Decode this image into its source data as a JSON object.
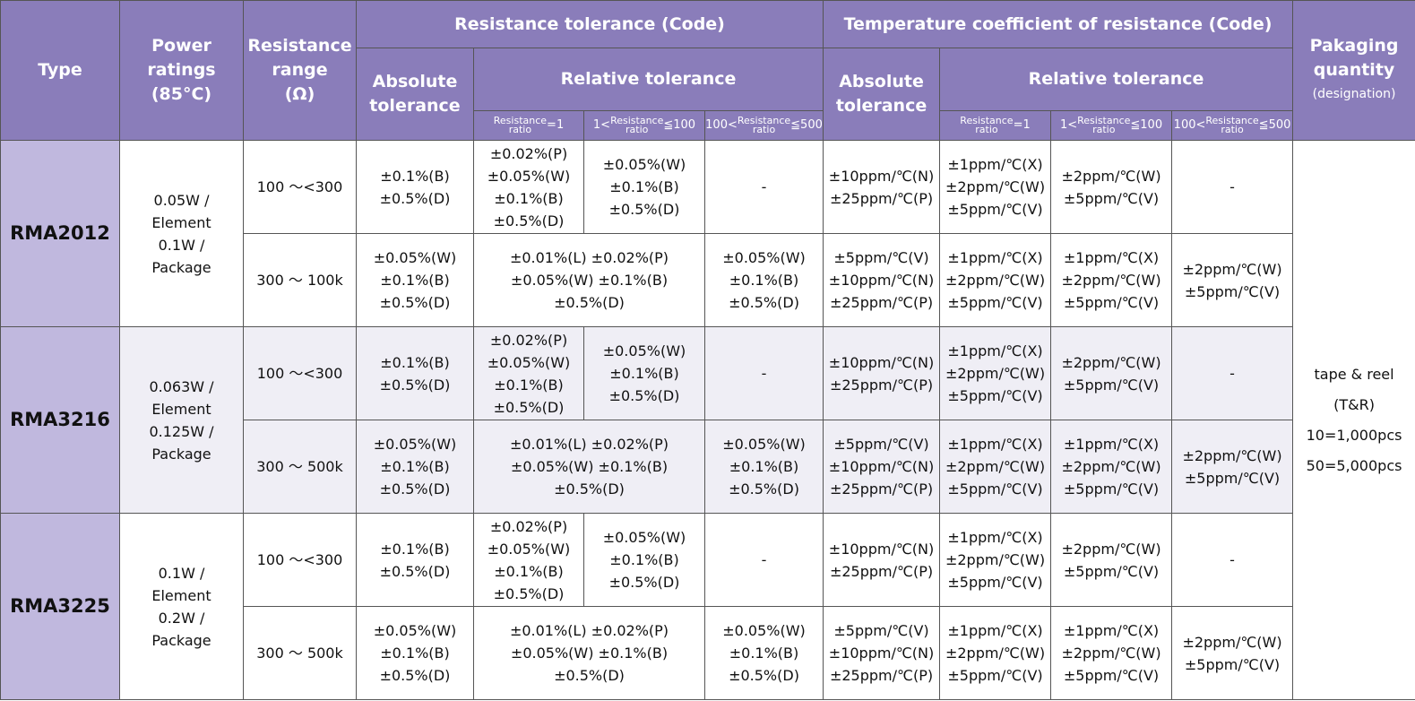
{
  "table": {
    "header": {
      "type": "Type",
      "power_ratings": [
        "Power",
        "ratings",
        "(85°C)"
      ],
      "resistance_range": [
        "Resistance",
        "range",
        "(Ω)"
      ],
      "resistance_tolerance": {
        "title": "Resistance tolerance (Code)",
        "absolute": [
          "Absolute",
          "tolerance"
        ],
        "relative": {
          "title": "Relative tolerance",
          "ratios": [
            {
              "top": "Resistance",
              "bottom": "ratio",
              "after": "=1"
            },
            {
              "before": "1<",
              "top": "Resistance",
              "bottom": "ratio",
              "after": "≦100"
            },
            {
              "before": "100<",
              "top": "Resistance",
              "bottom": "ratio",
              "after": "≦500"
            }
          ]
        }
      },
      "tcr": {
        "title": "Temperature coefficient of resistance (Code)",
        "absolute": [
          "Absolute",
          "tolerance"
        ],
        "relative": {
          "title": "Relative tolerance",
          "ratios": [
            {
              "top": "Resistance",
              "bottom": "ratio",
              "after": "=1"
            },
            {
              "before": "1<",
              "top": "Resistance",
              "bottom": "ratio",
              "after": "≦100"
            },
            {
              "before": "100<",
              "top": "Resistance",
              "bottom": "ratio",
              "after": "≦500"
            }
          ]
        }
      },
      "packaging": [
        "Pakaging",
        "quantity",
        "(designation)"
      ]
    },
    "packaging": [
      "tape & reel",
      "(T&R)",
      "10=1,000pcs",
      "50=5,000pcs"
    ],
    "products": [
      {
        "type": "RMA2012",
        "power": [
          "0.05W /",
          "Element",
          "0.1W /",
          "Package"
        ],
        "rows": [
          {
            "range": "100 ～<300",
            "tolerance": {
              "absolute": [
                "±0.1%(B)",
                "±0.5%(D)"
              ],
              "relative": [
                [
                  "±0.02%(P)",
                  "±0.05%(W)",
                  "±0.1%(B)",
                  "±0.5%(D)"
                ],
                [
                  "±0.05%(W)",
                  "±0.1%(B)",
                  "±0.5%(D)"
                ],
                [
                  "-"
                ]
              ]
            },
            "tcr": {
              "absolute": [
                "±10ppm/℃(N)",
                "±25ppm/℃(P)"
              ],
              "relative": [
                [
                  "±1ppm/℃(X)",
                  "±2ppm/℃(W)",
                  "±5ppm/℃(V)"
                ],
                [
                  "±2ppm/℃(W)",
                  "±5ppm/℃(V)"
                ],
                [
                  "-"
                ]
              ]
            }
          },
          {
            "range": "300 ～ 100k",
            "tolerance": {
              "absolute": [
                "±0.05%(W)",
                "±0.1%(B)",
                "±0.5%(D)"
              ],
              "relative": [
                [
                  "±0.01%(L) ±0.02%(P)",
                  "±0.05%(W) ±0.1%(B)",
                  "±0.5%(D)"
                ],
                [
                  "±0.05%(W)",
                  "±0.1%(B)",
                  "±0.5%(D)"
                ]
              ]
            },
            "tcr": {
              "absolute": [
                "±5ppm/℃(V)",
                "±10ppm/℃(N)",
                "±25ppm/℃(P)"
              ],
              "relative": [
                [
                  "±1ppm/℃(X)",
                  "±2ppm/℃(W)",
                  "±5ppm/℃(V)"
                ],
                [
                  "±1ppm/℃(X)",
                  "±2ppm/℃(W)",
                  "±5ppm/℃(V)"
                ],
                [
                  "±2ppm/℃(W)",
                  "±5ppm/℃(V)"
                ]
              ]
            }
          }
        ]
      },
      {
        "type": "RMA3216",
        "power": [
          "0.063W /",
          "Element",
          "0.125W /",
          "Package"
        ],
        "rows": [
          {
            "range": "100 ～<300",
            "tolerance": {
              "absolute": [
                "±0.1%(B)",
                "±0.5%(D)"
              ],
              "relative": [
                [
                  "±0.02%(P)",
                  "±0.05%(W)",
                  "±0.1%(B)",
                  "±0.5%(D)"
                ],
                [
                  "±0.05%(W)",
                  "±0.1%(B)",
                  "±0.5%(D)"
                ],
                [
                  "-"
                ]
              ]
            },
            "tcr": {
              "absolute": [
                "±10ppm/℃(N)",
                "±25ppm/℃(P)"
              ],
              "relative": [
                [
                  "±1ppm/℃(X)",
                  "±2ppm/℃(W)",
                  "±5ppm/℃(V)"
                ],
                [
                  "±2ppm/℃(W)",
                  "±5ppm/℃(V)"
                ],
                [
                  "-"
                ]
              ]
            }
          },
          {
            "range": "300 ～ 500k",
            "tolerance": {
              "absolute": [
                "±0.05%(W)",
                "±0.1%(B)",
                "±0.5%(D)"
              ],
              "relative": [
                [
                  "±0.01%(L) ±0.02%(P)",
                  "±0.05%(W) ±0.1%(B)",
                  "±0.5%(D)"
                ],
                [
                  "±0.05%(W)",
                  "±0.1%(B)",
                  "±0.5%(D)"
                ]
              ]
            },
            "tcr": {
              "absolute": [
                "±5ppm/℃(V)",
                "±10ppm/℃(N)",
                "±25ppm/℃(P)"
              ],
              "relative": [
                [
                  "±1ppm/℃(X)",
                  "±2ppm/℃(W)",
                  "±5ppm/℃(V)"
                ],
                [
                  "±1ppm/℃(X)",
                  "±2ppm/℃(W)",
                  "±5ppm/℃(V)"
                ],
                [
                  "±2ppm/℃(W)",
                  "±5ppm/℃(V)"
                ]
              ]
            }
          }
        ]
      },
      {
        "type": "RMA3225",
        "power": [
          "0.1W /",
          "Element",
          "0.2W /",
          "Package"
        ],
        "rows": [
          {
            "range": "100 ～<300",
            "tolerance": {
              "absolute": [
                "±0.1%(B)",
                "±0.5%(D)"
              ],
              "relative": [
                [
                  "±0.02%(P)",
                  "±0.05%(W)",
                  "±0.1%(B)",
                  "±0.5%(D)"
                ],
                [
                  "±0.05%(W)",
                  "±0.1%(B)",
                  "±0.5%(D)"
                ],
                [
                  "-"
                ]
              ]
            },
            "tcr": {
              "absolute": [
                "±10ppm/℃(N)",
                "±25ppm/℃(P)"
              ],
              "relative": [
                [
                  "±1ppm/℃(X)",
                  "±2ppm/℃(W)",
                  "±5ppm/℃(V)"
                ],
                [
                  "±2ppm/℃(W)",
                  "±5ppm/℃(V)"
                ],
                [
                  "-"
                ]
              ]
            }
          },
          {
            "range": "300 ～ 500k",
            "tolerance": {
              "absolute": [
                "±0.05%(W)",
                "±0.1%(B)",
                "±0.5%(D)"
              ],
              "relative": [
                [
                  "±0.01%(L) ±0.02%(P)",
                  "±0.05%(W) ±0.1%(B)",
                  "±0.5%(D)"
                ],
                [
                  "±0.05%(W)",
                  "±0.1%(B)",
                  "±0.5%(D)"
                ]
              ]
            },
            "tcr": {
              "absolute": [
                "±5ppm/℃(V)",
                "±10ppm/℃(N)",
                "±25ppm/℃(P)"
              ],
              "relative": [
                [
                  "±1ppm/℃(X)",
                  "±2ppm/℃(W)",
                  "±5ppm/℃(V)"
                ],
                [
                  "±1ppm/℃(X)",
                  "±2ppm/℃(W)",
                  "±5ppm/℃(V)"
                ],
                [
                  "±2ppm/℃(W)",
                  "±5ppm/℃(V)"
                ]
              ]
            }
          }
        ]
      }
    ]
  }
}
